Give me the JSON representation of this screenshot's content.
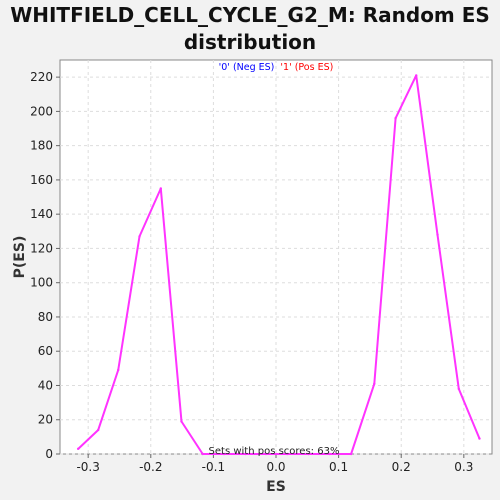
{
  "title_lines": [
    "WHITFIELD_CELL_CYCLE_G2_M: Random ES",
    "distribution"
  ],
  "chart_data": {
    "type": "line",
    "title": "WHITFIELD_CELL_CYCLE_G2_M: Random ES distribution",
    "xlabel": "ES",
    "ylabel": "P(ES)",
    "xlim": [
      -0.345,
      0.345
    ],
    "ylim": [
      0,
      230
    ],
    "xticks": [
      -0.3,
      -0.2,
      -0.1,
      0.0,
      0.1,
      0.2,
      0.3
    ],
    "xtick_labels": [
      "-0.3",
      "-0.2",
      "-0.1",
      "0.0",
      "0.1",
      "0.2",
      "0.3"
    ],
    "yticks": [
      0,
      20,
      40,
      60,
      80,
      100,
      120,
      140,
      160,
      180,
      200,
      220
    ],
    "grid": true,
    "legend": {
      "position": "top-center",
      "items": [
        {
          "label": "'0' (Neg ES)",
          "color": "#0000ff"
        },
        {
          "label": "'1' (Pos ES)",
          "color": "#ff0000"
        }
      ]
    },
    "annotation": "Sets with pos scores: 63%",
    "series": [
      {
        "color": "#ff33ff",
        "x": [
          -0.316,
          -0.284,
          -0.252,
          -0.218,
          -0.184,
          -0.151,
          -0.117,
          -0.083,
          -0.049,
          -0.016,
          0.018,
          0.052,
          0.086,
          0.12,
          0.157,
          0.191,
          0.224,
          0.258,
          0.292,
          0.325
        ],
        "y": [
          3,
          14,
          49,
          127,
          155,
          19,
          0,
          0,
          0,
          0,
          0,
          0,
          0,
          0,
          41,
          196,
          221,
          128,
          38,
          9
        ]
      }
    ]
  }
}
